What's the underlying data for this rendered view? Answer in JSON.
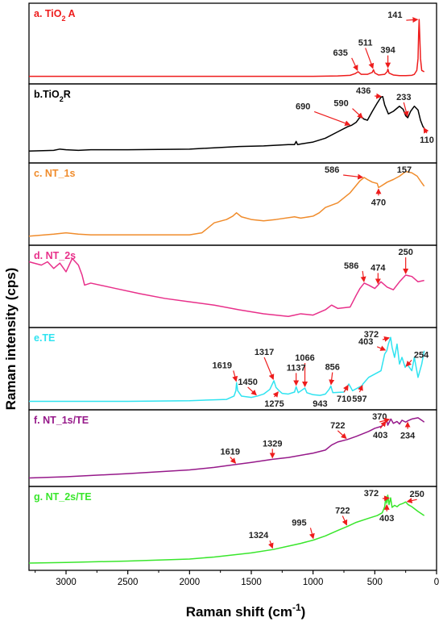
{
  "chart_data": {
    "type": "line",
    "xlabel": "Raman shift",
    "xlabel_unit_base": "cm",
    "xlabel_unit_exp": "-1",
    "ylabel": "Raman intensity (cps)",
    "xlim": [
      3300,
      0
    ],
    "x_ticks": [
      3000,
      2500,
      2000,
      1500,
      1000,
      500,
      0
    ],
    "panels": [
      {
        "id": "a",
        "label": "a. TiO",
        "label_sub": "2",
        "label_tail": " A",
        "color": "#ee1c1c",
        "x": [
          3300,
          2500,
          2000,
          1500,
          1000,
          800,
          700,
          660,
          635,
          610,
          560,
          520,
          511,
          500,
          470,
          420,
          400,
          394,
          385,
          350,
          300,
          250,
          200,
          180,
          160,
          150,
          145,
          141,
          137,
          130,
          120,
          100
        ],
        "y": [
          0.03,
          0.03,
          0.03,
          0.03,
          0.03,
          0.035,
          0.045,
          0.07,
          0.1,
          0.06,
          0.06,
          0.09,
          0.13,
          0.08,
          0.05,
          0.06,
          0.1,
          0.14,
          0.08,
          0.05,
          0.04,
          0.04,
          0.045,
          0.06,
          0.12,
          0.3,
          0.7,
          0.9,
          0.7,
          0.3,
          0.12,
          0.1
        ],
        "peaks": [
          {
            "label": "141",
            "x": 141
          },
          {
            "label": "394",
            "x": 394
          },
          {
            "label": "511",
            "x": 511
          },
          {
            "label": "635",
            "x": 635
          }
        ]
      },
      {
        "id": "b",
        "label": "b.TiO",
        "label_sub": "2",
        "label_tail": "R",
        "color": "#000000",
        "x": [
          3300,
          3100,
          3050,
          3000,
          2900,
          2800,
          2500,
          2000,
          1600,
          1400,
          1200,
          1150,
          1137,
          1125,
          1100,
          1000,
          900,
          800,
          720,
          690,
          650,
          620,
          600,
          590,
          560,
          520,
          480,
          450,
          436,
          420,
          390,
          350,
          300,
          270,
          250,
          233,
          210,
          180,
          150,
          130,
          110,
          100
        ],
        "y": [
          0.1,
          0.11,
          0.13,
          0.12,
          0.11,
          0.12,
          0.12,
          0.13,
          0.17,
          0.18,
          0.2,
          0.2,
          0.25,
          0.2,
          0.21,
          0.24,
          0.3,
          0.4,
          0.48,
          0.5,
          0.55,
          0.63,
          0.62,
          0.6,
          0.58,
          0.72,
          0.85,
          0.94,
          0.95,
          0.82,
          0.68,
          0.72,
          0.8,
          0.75,
          0.65,
          0.62,
          0.72,
          0.8,
          0.74,
          0.58,
          0.48,
          0.46
        ],
        "peaks": [
          {
            "label": "436",
            "x": 436
          },
          {
            "label": "233",
            "x": 233
          },
          {
            "label": "590",
            "x": 590
          },
          {
            "label": "690",
            "x": 690
          },
          {
            "label": "110",
            "x": 110
          }
        ]
      },
      {
        "id": "c",
        "label": "c. NT_1s",
        "color": "#f08c2c",
        "x": [
          3300,
          3100,
          3000,
          2900,
          2800,
          2500,
          2000,
          1900,
          1800,
          1700,
          1650,
          1620,
          1580,
          1500,
          1400,
          1300,
          1150,
          1100,
          1000,
          950,
          900,
          800,
          700,
          620,
          586,
          560,
          520,
          480,
          470,
          450,
          400,
          350,
          300,
          250,
          200,
          157,
          120,
          100
        ],
        "y": [
          0.05,
          0.08,
          0.1,
          0.08,
          0.07,
          0.07,
          0.07,
          0.1,
          0.25,
          0.3,
          0.35,
          0.4,
          0.34,
          0.3,
          0.28,
          0.3,
          0.34,
          0.32,
          0.35,
          0.4,
          0.48,
          0.55,
          0.7,
          0.88,
          0.93,
          0.9,
          0.86,
          0.84,
          0.78,
          0.8,
          0.86,
          0.9,
          0.95,
          1.02,
          1.0,
          0.95,
          0.85,
          0.8
        ],
        "peaks": [
          {
            "label": "157",
            "x": 157
          },
          {
            "label": "586",
            "x": 586
          },
          {
            "label": "470",
            "x": 470
          }
        ]
      },
      {
        "id": "d",
        "label": "d. NT_2s",
        "color": "#e8308a",
        "x": [
          3300,
          3200,
          3150,
          3100,
          3050,
          3000,
          2950,
          2900,
          2870,
          2850,
          2800,
          2600,
          2400,
          2200,
          2000,
          1800,
          1600,
          1400,
          1300,
          1200,
          1150,
          1100,
          1000,
          900,
          850,
          800,
          700,
          650,
          620,
          586,
          550,
          500,
          474,
          450,
          400,
          350,
          300,
          250,
          200,
          150,
          100
        ],
        "y": [
          0.9,
          0.85,
          0.9,
          0.8,
          0.88,
          0.75,
          0.95,
          0.85,
          0.7,
          0.55,
          0.58,
          0.5,
          0.42,
          0.35,
          0.3,
          0.25,
          0.18,
          0.12,
          0.1,
          0.08,
          0.1,
          0.12,
          0.1,
          0.18,
          0.25,
          0.2,
          0.22,
          0.4,
          0.5,
          0.58,
          0.55,
          0.5,
          0.55,
          0.6,
          0.52,
          0.48,
          0.6,
          0.7,
          0.68,
          0.6,
          0.62
        ],
        "peaks": [
          {
            "label": "250",
            "x": 250
          },
          {
            "label": "586",
            "x": 586
          },
          {
            "label": "474",
            "x": 474
          }
        ]
      },
      {
        "id": "e",
        "label": "e.TE",
        "color": "#2fe3f0",
        "x": [
          3300,
          3000,
          2500,
          2000,
          1700,
          1640,
          1625,
          1619,
          1610,
          1580,
          1500,
          1450,
          1400,
          1350,
          1317,
          1300,
          1275,
          1250,
          1200,
          1150,
          1137,
          1120,
          1066,
          1050,
          1000,
          943,
          900,
          870,
          856,
          840,
          750,
          710,
          680,
          600,
          597,
          550,
          500,
          450,
          420,
          403,
          390,
          372,
          360,
          340,
          320,
          300,
          280,
          254,
          240,
          200,
          180,
          150,
          120,
          100
        ],
        "y": [
          0.04,
          0.04,
          0.04,
          0.05,
          0.07,
          0.12,
          0.2,
          0.32,
          0.2,
          0.12,
          0.1,
          0.12,
          0.15,
          0.22,
          0.35,
          0.25,
          0.2,
          0.16,
          0.15,
          0.18,
          0.26,
          0.17,
          0.24,
          0.17,
          0.14,
          0.13,
          0.15,
          0.22,
          0.27,
          0.17,
          0.18,
          0.3,
          0.2,
          0.28,
          0.3,
          0.4,
          0.45,
          0.5,
          0.75,
          0.8,
          0.9,
          1.0,
          0.85,
          0.7,
          0.9,
          0.6,
          0.7,
          0.55,
          0.6,
          0.5,
          0.7,
          0.4,
          0.6,
          0.8
        ],
        "peaks": [
          {
            "label": "372",
            "x": 372
          },
          {
            "label": "254",
            "x": 254
          },
          {
            "label": "403",
            "x": 403
          },
          {
            "label": "1317",
            "x": 1317
          },
          {
            "label": "1066",
            "x": 1066
          },
          {
            "label": "1619",
            "x": 1619
          },
          {
            "label": "1450",
            "x": 1450
          },
          {
            "label": "1137",
            "x": 1137
          },
          {
            "label": "856",
            "x": 856
          },
          {
            "label": "1275",
            "x": 1275
          },
          {
            "label": "943",
            "x": 943
          },
          {
            "label": "710",
            "x": 710
          },
          {
            "label": "597",
            "x": 597
          }
        ]
      },
      {
        "id": "f",
        "label": "f. NT_1s/TE",
        "color": "#96198a",
        "x": [
          3300,
          3000,
          2500,
          2000,
          1800,
          1619,
          1500,
          1329,
          1200,
          1000,
          900,
          850,
          800,
          722,
          650,
          550,
          500,
          450,
          420,
          403,
          395,
          380,
          370,
          350,
          320,
          300,
          280,
          250,
          234,
          200,
          150,
          120,
          100
        ],
        "y": [
          0.05,
          0.07,
          0.12,
          0.18,
          0.22,
          0.27,
          0.3,
          0.35,
          0.38,
          0.45,
          0.5,
          0.58,
          0.63,
          0.67,
          0.72,
          0.8,
          0.85,
          0.88,
          0.92,
          0.98,
          0.9,
          0.96,
          1.0,
          0.93,
          0.96,
          0.92,
          0.98,
          0.95,
          0.97,
          1.0,
          1.02,
          0.98,
          0.95
        ],
        "peaks": [
          {
            "label": "370",
            "x": 370
          },
          {
            "label": "722",
            "x": 722
          },
          {
            "label": "403",
            "x": 403
          },
          {
            "label": "234",
            "x": 234
          },
          {
            "label": "1619",
            "x": 1619
          },
          {
            "label": "1329",
            "x": 1329
          }
        ]
      },
      {
        "id": "g",
        "label": "g. NT_2s/TE",
        "color": "#39e62c",
        "x": [
          3300,
          3000,
          2500,
          2000,
          1800,
          1500,
          1324,
          1200,
          1100,
          995,
          900,
          800,
          722,
          650,
          550,
          480,
          440,
          420,
          410,
          403,
          395,
          385,
          372,
          360,
          340,
          320,
          300,
          270,
          250,
          230,
          200,
          150,
          100
        ],
        "y": [
          0.02,
          0.03,
          0.05,
          0.08,
          0.11,
          0.17,
          0.22,
          0.27,
          0.31,
          0.36,
          0.42,
          0.5,
          0.56,
          0.62,
          0.68,
          0.72,
          0.76,
          0.85,
          1.0,
          0.9,
          1.02,
          0.88,
          0.98,
          0.84,
          0.87,
          0.85,
          0.88,
          0.9,
          0.92,
          0.88,
          0.85,
          0.78,
          0.72
        ],
        "peaks": [
          {
            "label": "372",
            "x": 372
          },
          {
            "label": "250",
            "x": 250
          },
          {
            "label": "403",
            "x": 403
          },
          {
            "label": "722",
            "x": 722
          },
          {
            "label": "995",
            "x": 995
          },
          {
            "label": "1324",
            "x": 1324
          }
        ]
      }
    ]
  }
}
